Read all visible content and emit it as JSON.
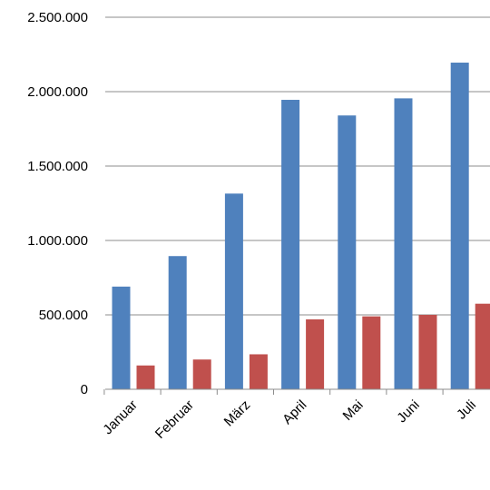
{
  "chart_data": {
    "type": "bar",
    "categories": [
      "Januar",
      "Februar",
      "März",
      "April",
      "Mai",
      "Juni",
      "Juli"
    ],
    "series": [
      {
        "color": "#4F81BD",
        "values": [
          690000,
          895000,
          1315000,
          1945000,
          1840000,
          1955000,
          2195000
        ]
      },
      {
        "color": "#C0504D",
        "values": [
          160000,
          200000,
          235000,
          470000,
          490000,
          500000,
          575000
        ]
      }
    ],
    "ylim": [
      0,
      2500000
    ],
    "yticks": [
      0,
      500000,
      1000000,
      1500000,
      2000000,
      2500000
    ],
    "ytick_labels": [
      "0",
      "500.000",
      "1.000.000",
      "1.500.000",
      "2.000.000",
      "2.500.000"
    ],
    "grid": true,
    "title": "",
    "xlabel": "",
    "ylabel": ""
  }
}
